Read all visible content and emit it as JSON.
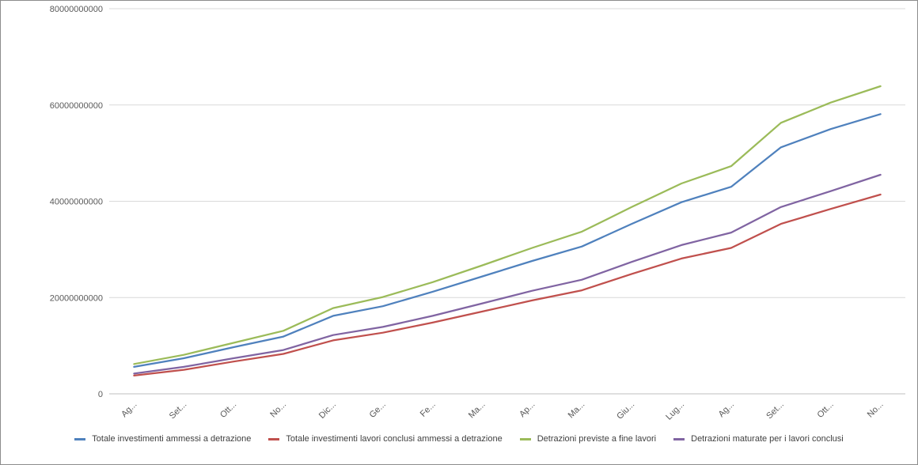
{
  "chart_data": {
    "type": "line",
    "title": "",
    "xlabel": "",
    "ylabel": "",
    "ylim": [
      0,
      80000000000
    ],
    "yticks": [
      0,
      20000000000,
      40000000000,
      60000000000,
      80000000000
    ],
    "ytick_labels": [
      "0",
      "20000000000",
      "40000000000",
      "60000000000",
      "80000000000"
    ],
    "categories": [
      "Ag...",
      "Set...",
      "Ott...",
      "No...",
      "Dic...",
      "Ge...",
      "Fe...",
      "Ma...",
      "Ap...",
      "Ma...",
      "Giu...",
      "Lug...",
      "Ag...",
      "Set...",
      "Ott...",
      "No..."
    ],
    "grid": "horizontal",
    "legend_position": "bottom",
    "series": [
      {
        "name": "Totale investimenti ammessi a detrazione",
        "color": "#4f81bd",
        "values": [
          5600000000,
          7400000000,
          9700000000,
          11900000000,
          16200000000,
          18200000000,
          21200000000,
          24400000000,
          27600000000,
          30600000000,
          35300000000,
          39800000000,
          43000000000,
          51200000000,
          55000000000,
          58100000000
        ]
      },
      {
        "name": "Totale investimenti lavori conclusi ammessi a detrazione",
        "color": "#c0504d",
        "values": [
          3800000000,
          5000000000,
          6700000000,
          8300000000,
          11100000000,
          12700000000,
          14800000000,
          17100000000,
          19400000000,
          21500000000,
          24900000000,
          28100000000,
          30300000000,
          35300000000,
          38400000000,
          41400000000
        ]
      },
      {
        "name": "Detrazioni previste a fine lavori",
        "color": "#9bbb59",
        "values": [
          6200000000,
          8100000000,
          10600000000,
          13100000000,
          17800000000,
          20100000000,
          23200000000,
          26700000000,
          30300000000,
          33700000000,
          38800000000,
          43700000000,
          47300000000,
          56300000000,
          60500000000,
          63900000000
        ]
      },
      {
        "name": "Detrazioni maturate per i lavori conclusi",
        "color": "#8064a2",
        "values": [
          4200000000,
          5600000000,
          7400000000,
          9100000000,
          12200000000,
          13900000000,
          16200000000,
          18800000000,
          21400000000,
          23700000000,
          27400000000,
          30900000000,
          33500000000,
          38800000000,
          42100000000,
          45500000000
        ]
      }
    ]
  }
}
